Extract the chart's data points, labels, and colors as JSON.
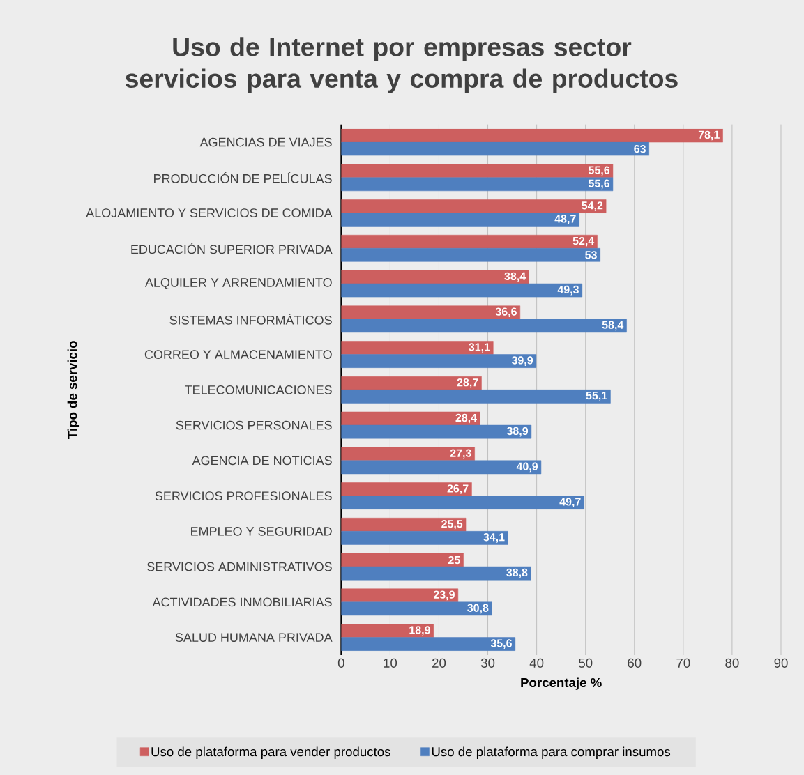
{
  "chart_data": {
    "type": "bar",
    "orientation": "horizontal",
    "title": "Uso de Internet por empresas sector servicios para venta y compra de productos",
    "xlabel": "Porcentaje %",
    "ylabel": "Tipo de servicio",
    "categories": [
      "AGENCIAS DE VIAJES",
      "PRODUCCIÓN DE PELÍCULAS",
      "ALOJAMIENTO Y SERVICIOS DE COMIDA",
      "EDUCACIÓN SUPERIOR PRIVADA",
      "ALQUILER Y ARRENDAMIENTO",
      "SISTEMAS INFORMÁTICOS",
      "CORREO Y ALMACENAMIENTO",
      "TELECOMUNICACIONES",
      "SERVICIOS PERSONALES",
      "AGENCIA DE NOTICIAS",
      "SERVICIOS PROFESIONALES",
      "EMPLEO Y SEGURIDAD",
      "SERVICIOS ADMINISTRATIVOS",
      "ACTIVIDADES INMOBILIARIAS",
      "SALUD HUMANA PRIVADA"
    ],
    "series": [
      {
        "name": "Uso de plataforma para vender productos",
        "color": "#cd5f5f",
        "values": [
          78.1,
          55.6,
          54.2,
          52.4,
          38.4,
          36.6,
          31.1,
          28.7,
          28.4,
          27.3,
          26.7,
          25.5,
          25,
          23.9,
          18.9
        ],
        "value_labels": [
          "78,1",
          "55,6",
          "54,2",
          "52,4",
          "38,4",
          "36,6",
          "31,1",
          "28,7",
          "28,4",
          "27,3",
          "26,7",
          "25,5",
          "25",
          "23,9",
          "18,9"
        ]
      },
      {
        "name": "Uso de plataforma para comprar insumos",
        "color": "#4f7fbf",
        "values": [
          63,
          55.6,
          48.7,
          53,
          49.3,
          58.4,
          39.9,
          55.1,
          38.9,
          40.9,
          49.7,
          34.1,
          38.8,
          30.8,
          35.6
        ],
        "value_labels": [
          "63",
          "55,6",
          "48,7",
          "53",
          "49,3",
          "58,4",
          "39,9",
          "55,1",
          "38,9",
          "40,9",
          "49,7",
          "34,1",
          "38,8",
          "30,8",
          "35,6"
        ]
      }
    ],
    "xlim": [
      0,
      90
    ],
    "xticks": [
      0,
      10,
      20,
      30,
      40,
      50,
      60,
      70,
      80,
      90
    ],
    "grid": "x",
    "legend": "bottom"
  }
}
